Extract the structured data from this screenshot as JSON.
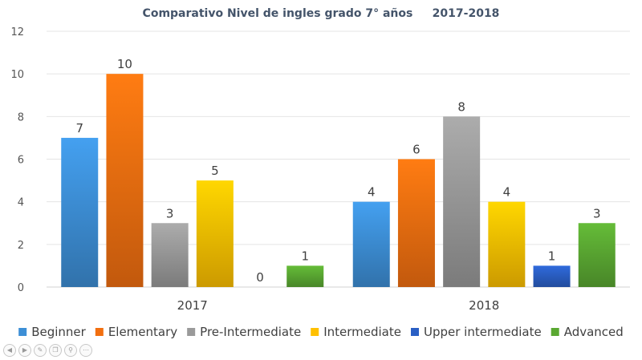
{
  "chart_data": {
    "type": "bar",
    "title": "Comparativo Nivel de ingles grado 7° años     2017-2018",
    "categories": [
      "2017",
      "2018"
    ],
    "ylim": [
      0,
      12
    ],
    "yticks": [
      0,
      2,
      4,
      6,
      8,
      10,
      12
    ],
    "grid": true,
    "legend_position": "bottom",
    "series": [
      {
        "name": "Beginner",
        "values": [
          7,
          4
        ],
        "color": "#3d8fd6"
      },
      {
        "name": "Elementary",
        "values": [
          10,
          6
        ],
        "color": "#f26f10"
      },
      {
        "name": "Pre-Intermediate",
        "values": [
          3,
          8
        ],
        "color": "#9a9a9a"
      },
      {
        "name": "Intermediate",
        "values": [
          5,
          4
        ],
        "color": "#ffc000"
      },
      {
        "name": "Upper intermediate",
        "values": [
          0,
          1
        ],
        "color": "#2a5fc4"
      },
      {
        "name": "Advanced",
        "values": [
          1,
          3
        ],
        "color": "#5aa832"
      }
    ]
  },
  "toolbar": {
    "icons": [
      "prev-icon",
      "next-icon",
      "pen-icon",
      "copy-icon",
      "zoom-icon",
      "more-icon"
    ],
    "glyphs": [
      "◀",
      "▶",
      "✎",
      "❐",
      "⚲",
      "⋯"
    ]
  }
}
